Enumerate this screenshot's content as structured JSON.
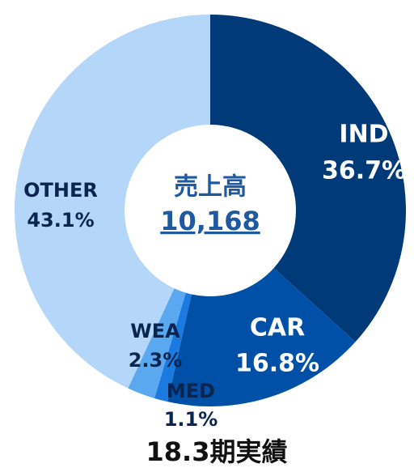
{
  "chart_data": {
    "type": "donut",
    "title": "18.3期実績",
    "center_label": "売上高",
    "center_value": "10,168",
    "categories": [
      "IND",
      "CAR",
      "MED",
      "WEA",
      "OTHER"
    ],
    "values": [
      36.7,
      16.8,
      1.1,
      2.3,
      43.1
    ],
    "value_labels": [
      "36.7%",
      "16.8%",
      "1.1%",
      "2.3%",
      "43.1%"
    ],
    "colors": [
      "#003a78",
      "#0050a8",
      "#1a7ae0",
      "#5aa8f0",
      "#b4d6f8"
    ]
  }
}
